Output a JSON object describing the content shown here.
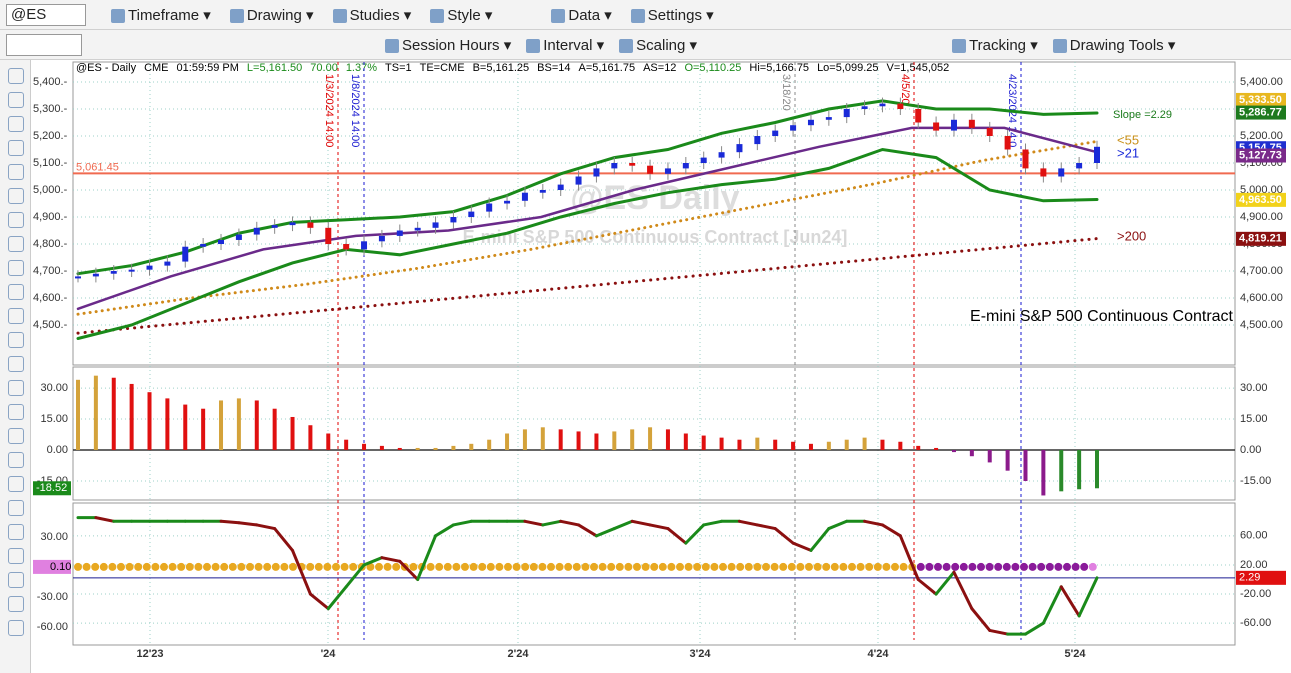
{
  "toolbar": {
    "symbol": "@ES",
    "row1": [
      "Timeframe",
      "Drawing",
      "Studies",
      "Style",
      "Data",
      "Settings"
    ],
    "row2": [
      "Session Hours",
      "Interval",
      "Scaling",
      "Tracking",
      "Drawing Tools"
    ]
  },
  "chart": {
    "header": [
      "@ES - Daily",
      "CME",
      "01:59:59 PM",
      "L=5,161.50",
      "70.00",
      "1.37%",
      "TS=1",
      "TE=CME",
      "B=5,161.25",
      "BS=14",
      "A=5,161.75",
      "AS=12",
      "O=5,110.25",
      "Hi=5,166.75",
      "Lo=5,099.25",
      "V=1,545,052"
    ],
    "watermark": [
      "@ES Daily",
      "E-mini S&P 500 Continuous Contract [Jun24]"
    ],
    "description": "E-mini S&P 500 Continuous Contract",
    "slope": "Slope =2.29",
    "ma_labels": [
      "<55",
      ">21",
      ">200"
    ],
    "hline": {
      "value": 5061.45,
      "label": "5,061.45"
    },
    "vlines": [
      "1/3/2024 14:00",
      "1/8/2024 14:00",
      "3/18/20",
      "4/5/20",
      "4/23/2024 14:0"
    ],
    "x_labels": [
      "12'23",
      "'24",
      "2'24",
      "3'24",
      "4'24",
      "5'24"
    ],
    "price": {
      "ylim": [
        4352,
        5474
      ],
      "yticks": [
        {
          "value": 5400,
          "label": "5,400.00"
        },
        {
          "value": 5300,
          "label": "5,300.00"
        },
        {
          "value": 5200,
          "label": "5,200.00"
        },
        {
          "value": 5100,
          "label": "5,100.00"
        },
        {
          "value": 5000,
          "label": "5,000.00"
        },
        {
          "value": 4900,
          "label": "4,900.00"
        },
        {
          "value": 4800,
          "label": "4,800.00"
        },
        {
          "value": 4700,
          "label": "4,700.00"
        },
        {
          "value": 4600,
          "label": "4,600.00"
        },
        {
          "value": 4500,
          "label": "4,500.00"
        }
      ],
      "left_ticks": [
        {
          "value": 5400,
          "label": "5,400.-"
        },
        {
          "value": 5300,
          "label": "5,300.-"
        },
        {
          "value": 5200,
          "label": "5,200.-"
        },
        {
          "value": 5100,
          "label": "5,100.-"
        },
        {
          "value": 5000,
          "label": "5,000.-"
        },
        {
          "value": 4900,
          "label": "4,900.-"
        },
        {
          "value": 4800,
          "label": "4,800.-"
        },
        {
          "value": 4700,
          "label": "4,700.-"
        },
        {
          "value": 4600,
          "label": "4,600.-"
        },
        {
          "value": 4500,
          "label": "4,500.-"
        }
      ],
      "badges": [
        {
          "value": 5333.5,
          "label": "5,333.50",
          "color": "#e8b820"
        },
        {
          "value": 5286.77,
          "label": "5,286.77",
          "color": "#1e7a1e"
        },
        {
          "value": 5154.75,
          "label": "5,154.75",
          "color": "#1f2fd0"
        },
        {
          "value": 5127.73,
          "label": "5,127.73",
          "color": "#7a2a8a"
        },
        {
          "value": 4963.5,
          "label": "4,963.50",
          "color": "#f2d21a"
        },
        {
          "value": 4819.21,
          "label": "4,819.21",
          "color": "#8b1010"
        }
      ],
      "closes": [
        4680,
        4690,
        4700,
        4705,
        4720,
        4735,
        4790,
        4800,
        4815,
        4835,
        4860,
        4870,
        4880,
        4860,
        4800,
        4780,
        4810,
        4830,
        4850,
        4860,
        4880,
        4900,
        4920,
        4950,
        4960,
        4990,
        5000,
        5020,
        5050,
        5080,
        5100,
        5090,
        5060,
        5080,
        5100,
        5120,
        5140,
        5170,
        5200,
        5220,
        5240,
        5260,
        5270,
        5300,
        5310,
        5320,
        5300,
        5250,
        5220,
        5260,
        5230,
        5200,
        5150,
        5080,
        5050,
        5080,
        5100,
        5160
      ],
      "upper_band": [
        4690,
        4720,
        4770,
        4840,
        4880,
        4890,
        4900,
        4920,
        4980,
        5060,
        5120,
        5150,
        5210,
        5250,
        5300,
        5330,
        5300,
        5300,
        5280,
        5285
      ],
      "lower_band": [
        4450,
        4500,
        4580,
        4660,
        4730,
        4780,
        4760,
        4800,
        4840,
        4900,
        4950,
        4990,
        5020,
        5040,
        5080,
        5150,
        5120,
        5000,
        4960,
        4965
      ],
      "ma21": [
        4560,
        4680,
        4780,
        4830,
        4850,
        4900,
        5000,
        5080,
        5160,
        5230,
        5230,
        5140
      ],
      "ma55": [
        4540,
        4600,
        4650,
        4710,
        4780,
        4860,
        4940,
        5020,
        5110,
        5180
      ],
      "ma200": [
        4470,
        4820
      ]
    },
    "histogram": {
      "ylim": [
        -24.2,
        40.2
      ],
      "yticks": [
        {
          "value": 30,
          "label": "30.00"
        },
        {
          "value": 15,
          "label": "15.00"
        },
        {
          "value": 0,
          "label": "0.00"
        },
        {
          "value": -15,
          "label": "-15.00"
        }
      ],
      "badge": {
        "value": -18.52,
        "label": "-18.52"
      },
      "values": [
        34,
        36,
        35,
        32,
        28,
        25,
        22,
        20,
        24,
        25,
        24,
        20,
        16,
        12,
        8,
        5,
        3,
        2,
        1,
        1,
        1,
        2,
        3,
        5,
        8,
        10,
        11,
        10,
        9,
        8,
        9,
        10,
        11,
        10,
        8,
        7,
        6,
        5,
        6,
        5,
        4,
        3,
        4,
        5,
        6,
        5,
        4,
        2,
        1,
        -1,
        -3,
        -6,
        -10,
        -15,
        -22,
        -20,
        -19,
        -18.52
      ]
    },
    "oscillator": {
      "ylim": [
        -90,
        101
      ],
      "yticks": [
        {
          "value": 60,
          "label": "60.00"
        },
        {
          "value": 20,
          "label": "20.00"
        },
        {
          "value": -20,
          "label": "-20.00"
        },
        {
          "value": -60,
          "label": "-60.00"
        }
      ],
      "left_ylim": [
        -78,
        61
      ],
      "left_ticks": [
        {
          "value": 30,
          "label": "30.00"
        },
        {
          "value": -30,
          "label": "-30.00"
        },
        {
          "value": -60,
          "label": "-60.00"
        }
      ],
      "left_badge": {
        "value": 0.1,
        "label": "0.10"
      },
      "badge": {
        "value": 2.29,
        "label": "2.29"
      },
      "values": [
        85,
        85,
        80,
        80,
        80,
        80,
        80,
        80,
        80,
        78,
        75,
        70,
        40,
        -20,
        -40,
        -10,
        20,
        30,
        25,
        0,
        60,
        75,
        80,
        80,
        80,
        80,
        75,
        80,
        75,
        60,
        70,
        80,
        75,
        70,
        50,
        75,
        80,
        80,
        75,
        70,
        50,
        40,
        70,
        80,
        80,
        75,
        60,
        0,
        -20,
        10,
        -40,
        -70,
        -75,
        -75,
        -60,
        -10,
        -50,
        2.29
      ]
    }
  }
}
